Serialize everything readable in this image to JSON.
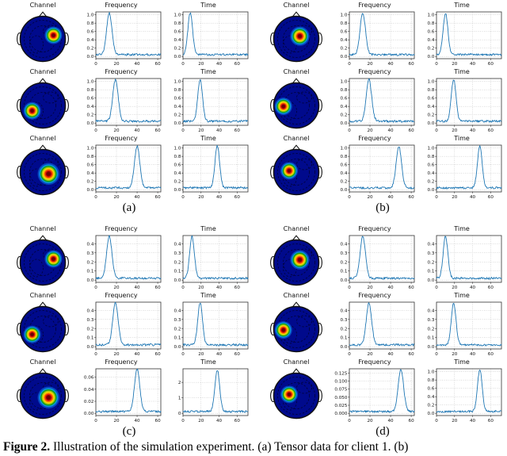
{
  "caption": {
    "label": "Figure 2.",
    "text": " Illustration of the simulation experiment. (a) Tensor data for client 1. (b)"
  },
  "colors": {
    "line": "#1f77b4",
    "head_fill": "#000a8c",
    "outline": "#111111",
    "contour": "#000338",
    "grid": "#aaaaaa",
    "hotspot_rings": [
      "#0646c0",
      "#0894d8",
      "#14a014",
      "#9cc814",
      "#ffd800",
      "#ff7800",
      "#e01808",
      "#8c0000",
      "#6e0000"
    ]
  },
  "chart_data": {
    "type": "line",
    "xticks": [
      0,
      20,
      40,
      60
    ],
    "panels": [
      {
        "label": "(a)",
        "rows": [
          {
            "channel": {
              "title": "Channel",
              "hotspot_x": 0.74,
              "hotspot_y": 0.42,
              "spread": 1
            },
            "plots": [
              {
                "title": "Frequency",
                "xlim": [
                  0,
                  63
                ],
                "peak_x": 13,
                "peak_y": 1.0,
                "ymax": 1.07,
                "yticks": [
                  "0.0",
                  "0.2",
                  "0.4",
                  "0.6",
                  "0.8",
                  "1.0"
                ],
                "seed": 1
              },
              {
                "title": "Time",
                "xlim": [
                  0,
                  72
                ],
                "peak_x": 8,
                "peak_y": 1.0,
                "ymax": 1.07,
                "yticks": [
                  "0.0",
                  "0.2",
                  "0.4",
                  "0.6",
                  "0.8",
                  "1.0"
                ],
                "seed": 2
              }
            ]
          },
          {
            "channel": {
              "title": "Channel",
              "hotspot_x": 0.26,
              "hotspot_y": 0.62,
              "spread": 1
            },
            "plots": [
              {
                "title": "Frequency",
                "xlim": [
                  0,
                  63
                ],
                "peak_x": 19,
                "peak_y": 1.0,
                "ymax": 1.07,
                "yticks": [
                  "0.0",
                  "0.2",
                  "0.4",
                  "0.6",
                  "0.8",
                  "1.0"
                ],
                "seed": 3
              },
              {
                "title": "Time",
                "xlim": [
                  0,
                  72
                ],
                "peak_x": 19,
                "peak_y": 1.0,
                "ymax": 1.07,
                "yticks": [
                  "0.0",
                  "0.2",
                  "0.4",
                  "0.6",
                  "0.8",
                  "1.0"
                ],
                "seed": 4
              }
            ]
          },
          {
            "channel": {
              "title": "Channel",
              "hotspot_x": 0.63,
              "hotspot_y": 0.54,
              "spread": 1.25
            },
            "plots": [
              {
                "title": "Frequency",
                "xlim": [
                  0,
                  63
                ],
                "peak_x": 40,
                "peak_y": 1.0,
                "ymax": 1.07,
                "yticks": [
                  "0.0",
                  "0.2",
                  "0.4",
                  "0.6",
                  "0.8",
                  "1.0"
                ],
                "seed": 5
              },
              {
                "title": "Time",
                "xlim": [
                  0,
                  72
                ],
                "peak_x": 38,
                "peak_y": 1.0,
                "ymax": 1.07,
                "yticks": [
                  "0.0",
                  "0.2",
                  "0.4",
                  "0.6",
                  "0.8",
                  "1.0"
                ],
                "seed": 6
              }
            ]
          }
        ]
      },
      {
        "label": "(b)",
        "rows": [
          {
            "channel": {
              "title": "Channel",
              "hotspot_x": 0.58,
              "hotspot_y": 0.44,
              "spread": 1.1
            },
            "plots": [
              {
                "title": "Frequency",
                "xlim": [
                  0,
                  63
                ],
                "peak_x": 13,
                "peak_y": 1.0,
                "ymax": 1.07,
                "yticks": [
                  "0.0",
                  "0.2",
                  "0.4",
                  "0.6",
                  "0.8",
                  "1.0"
                ],
                "seed": 7
              },
              {
                "title": "Time",
                "xlim": [
                  0,
                  72
                ],
                "peak_x": 10,
                "peak_y": 1.0,
                "ymax": 1.07,
                "yticks": [
                  "0.0",
                  "0.2",
                  "0.4",
                  "0.6",
                  "0.8",
                  "1.0"
                ],
                "seed": 8
              }
            ]
          },
          {
            "channel": {
              "title": "Channel",
              "hotspot_x": 0.21,
              "hotspot_y": 0.52,
              "spread": 1
            },
            "plots": [
              {
                "title": "Frequency",
                "xlim": [
                  0,
                  63
                ],
                "peak_x": 19,
                "peak_y": 1.0,
                "ymax": 1.07,
                "yticks": [
                  "0.0",
                  "0.2",
                  "0.4",
                  "0.6",
                  "0.8",
                  "1.0"
                ],
                "seed": 9
              },
              {
                "title": "Time",
                "xlim": [
                  0,
                  72
                ],
                "peak_x": 19,
                "peak_y": 1.0,
                "ymax": 1.07,
                "yticks": [
                  "0.0",
                  "0.2",
                  "0.4",
                  "0.6",
                  "0.8",
                  "1.0"
                ],
                "seed": 10
              }
            ]
          },
          {
            "channel": {
              "title": "Channel",
              "hotspot_x": 0.34,
              "hotspot_y": 0.47,
              "spread": 1
            },
            "plots": [
              {
                "title": "Frequency",
                "xlim": [
                  0,
                  63
                ],
                "peak_x": 48,
                "peak_y": 1.0,
                "ymax": 1.07,
                "yticks": [
                  "0.0",
                  "0.2",
                  "0.4",
                  "0.6",
                  "0.8",
                  "1.0"
                ],
                "seed": 11
              },
              {
                "title": "Time",
                "xlim": [
                  0,
                  72
                ],
                "peak_x": 48,
                "peak_y": 1.0,
                "ymax": 1.07,
                "yticks": [
                  "0.0",
                  "0.2",
                  "0.4",
                  "0.6",
                  "0.8",
                  "1.0"
                ],
                "seed": 12
              }
            ]
          }
        ]
      },
      {
        "label": "(c)",
        "rows": [
          {
            "channel": {
              "title": "Channel",
              "hotspot_x": 0.74,
              "hotspot_y": 0.42,
              "spread": 1
            },
            "plots": [
              {
                "title": "Frequency",
                "xlim": [
                  0,
                  63
                ],
                "peak_x": 13,
                "peak_y": 0.46,
                "ymax": 0.49,
                "yticks": [
                  "0.0",
                  "0.1",
                  "0.2",
                  "0.3",
                  "0.4"
                ],
                "seed": 13
              },
              {
                "title": "Time",
                "xlim": [
                  0,
                  72
                ],
                "peak_x": 10,
                "peak_y": 0.46,
                "ymax": 0.49,
                "yticks": [
                  "0.0",
                  "0.1",
                  "0.2",
                  "0.3",
                  "0.4"
                ],
                "seed": 14
              }
            ]
          },
          {
            "channel": {
              "title": "Channel",
              "hotspot_x": 0.26,
              "hotspot_y": 0.62,
              "spread": 1
            },
            "plots": [
              {
                "title": "Frequency",
                "xlim": [
                  0,
                  63
                ],
                "peak_x": 19,
                "peak_y": 0.46,
                "ymax": 0.49,
                "yticks": [
                  "0.0",
                  "0.1",
                  "0.2",
                  "0.3",
                  "0.4"
                ],
                "seed": 15
              },
              {
                "title": "Time",
                "xlim": [
                  0,
                  72
                ],
                "peak_x": 19,
                "peak_y": 0.46,
                "ymax": 0.49,
                "yticks": [
                  "0.0",
                  "0.1",
                  "0.2",
                  "0.3",
                  "0.4"
                ],
                "seed": 16
              }
            ]
          },
          {
            "channel": {
              "title": "Channel",
              "hotspot_x": 0.63,
              "hotspot_y": 0.54,
              "spread": 1.25
            },
            "plots": [
              {
                "title": "Frequency",
                "xlim": [
                  0,
                  63
                ],
                "peak_x": 40,
                "peak_y": 0.07,
                "ymax": 0.074,
                "yticks": [
                  "0.00",
                  "0.02",
                  "0.04",
                  "0.06"
                ],
                "seed": 17
              },
              {
                "title": "Time",
                "xlim": [
                  0,
                  72
                ],
                "peak_x": 38,
                "peak_y": 2.7,
                "ymax": 2.88,
                "yticks": [
                  "0",
                  "1",
                  "2"
                ],
                "seed": 18
              }
            ]
          }
        ]
      },
      {
        "label": "(d)",
        "rows": [
          {
            "channel": {
              "title": "Channel",
              "hotspot_x": 0.58,
              "hotspot_y": 0.44,
              "spread": 1.1
            },
            "plots": [
              {
                "title": "Frequency",
                "xlim": [
                  0,
                  63
                ],
                "peak_x": 13,
                "peak_y": 0.46,
                "ymax": 0.49,
                "yticks": [
                  "0.0",
                  "0.1",
                  "0.2",
                  "0.3",
                  "0.4"
                ],
                "seed": 19
              },
              {
                "title": "Time",
                "xlim": [
                  0,
                  72
                ],
                "peak_x": 10,
                "peak_y": 0.46,
                "ymax": 0.49,
                "yticks": [
                  "0.0",
                  "0.1",
                  "0.2",
                  "0.3",
                  "0.4"
                ],
                "seed": 20
              }
            ]
          },
          {
            "channel": {
              "title": "Channel",
              "hotspot_x": 0.21,
              "hotspot_y": 0.52,
              "spread": 1
            },
            "plots": [
              {
                "title": "Frequency",
                "xlim": [
                  0,
                  63
                ],
                "peak_x": 19,
                "peak_y": 0.46,
                "ymax": 0.49,
                "yticks": [
                  "0.0",
                  "0.1",
                  "0.2",
                  "0.3",
                  "0.4"
                ],
                "seed": 21
              },
              {
                "title": "Time",
                "xlim": [
                  0,
                  72
                ],
                "peak_x": 19,
                "peak_y": 0.46,
                "ymax": 0.49,
                "yticks": [
                  "0.0",
                  "0.1",
                  "0.2",
                  "0.3",
                  "0.4"
                ],
                "seed": 22
              }
            ]
          },
          {
            "channel": {
              "title": "Channel",
              "hotspot_x": 0.34,
              "hotspot_y": 0.47,
              "spread": 1
            },
            "plots": [
              {
                "title": "Frequency",
                "xlim": [
                  0,
                  63
                ],
                "peak_x": 50,
                "peak_y": 0.131,
                "ymax": 0.138,
                "yticks": [
                  "0.000",
                  "0.025",
                  "0.050",
                  "0.075",
                  "0.100",
                  "0.125"
                ],
                "seed": 23
              },
              {
                "title": "Time",
                "xlim": [
                  0,
                  72
                ],
                "peak_x": 48,
                "peak_y": 1.0,
                "ymax": 1.07,
                "yticks": [
                  "0.0",
                  "0.2",
                  "0.4",
                  "0.6",
                  "0.8",
                  "1.0"
                ],
                "seed": 24
              }
            ]
          }
        ]
      }
    ]
  }
}
